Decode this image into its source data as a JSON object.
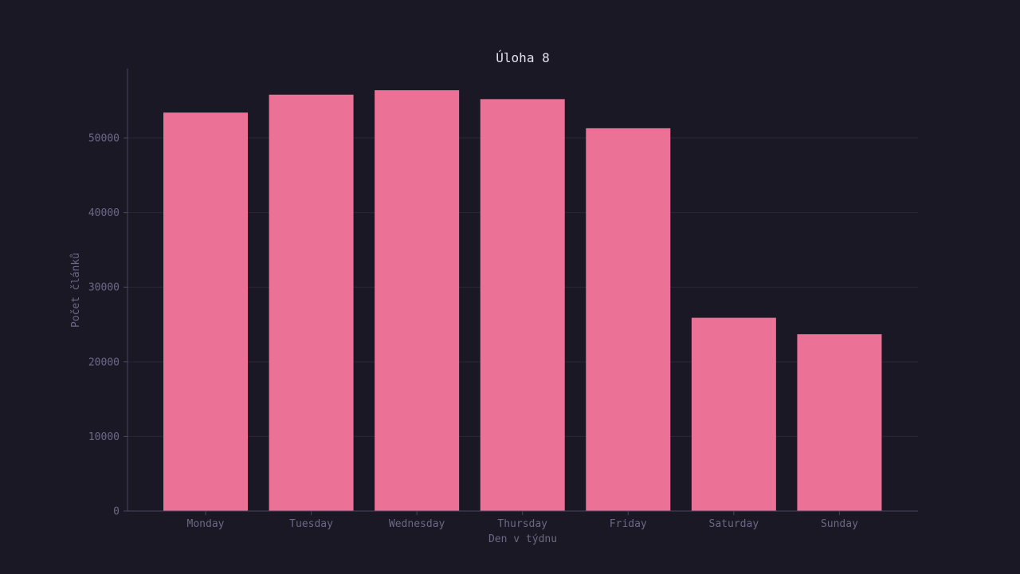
{
  "chart_data": {
    "type": "bar",
    "title": "Úloha 8",
    "xlabel": "Den v týdnu",
    "ylabel": "Počet článků",
    "categories": [
      "Monday",
      "Tuesday",
      "Wednesday",
      "Thursday",
      "Friday",
      "Saturday",
      "Sunday"
    ],
    "values": [
      53400,
      55800,
      56400,
      55200,
      51300,
      25900,
      23700
    ],
    "ylim": [
      0,
      59300
    ],
    "yticks": [
      0,
      10000,
      20000,
      30000,
      40000,
      50000
    ],
    "grid": true,
    "legend": "none"
  },
  "colors": {
    "background": "#1b1825",
    "bar": "#ec7196",
    "axis": "#4a4660",
    "grid": "#2a2637",
    "text_muted": "#6c6785",
    "title": "#e2e0ea"
  }
}
